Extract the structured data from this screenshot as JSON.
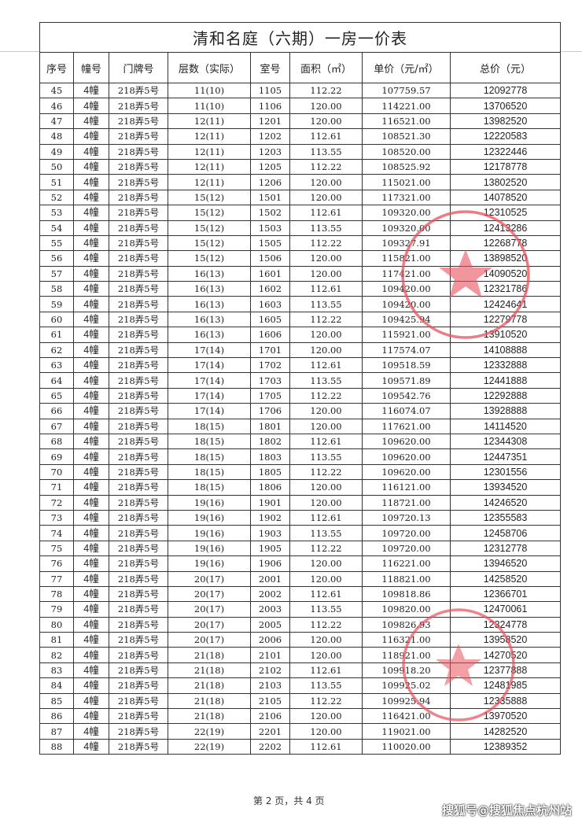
{
  "title": "清和名庭（六期）一房一价表",
  "headers": [
    "序号",
    "幢号",
    "门牌号",
    "层数（实际）",
    "室号",
    "面积（㎡）",
    "单价（元/㎡）",
    "总价（元）"
  ],
  "rows": [
    [
      "45",
      "4幢",
      "218弄5号",
      "11(10)",
      "1105",
      "112.22",
      "107759.57",
      "12092778"
    ],
    [
      "46",
      "4幢",
      "218弄5号",
      "11(10)",
      "1106",
      "120.00",
      "114221.00",
      "13706520"
    ],
    [
      "47",
      "4幢",
      "218弄5号",
      "12(11)",
      "1201",
      "120.00",
      "116521.00",
      "13982520"
    ],
    [
      "48",
      "4幢",
      "218弄5号",
      "12(11)",
      "1202",
      "112.61",
      "108521.30",
      "12220583"
    ],
    [
      "49",
      "4幢",
      "218弄5号",
      "12(11)",
      "1203",
      "113.55",
      "108520.00",
      "12322446"
    ],
    [
      "50",
      "4幢",
      "218弄5号",
      "12(11)",
      "1205",
      "112.22",
      "108525.92",
      "12178778"
    ],
    [
      "51",
      "4幢",
      "218弄5号",
      "12(11)",
      "1206",
      "120.00",
      "115021.00",
      "13802520"
    ],
    [
      "52",
      "4幢",
      "218弄5号",
      "15(12)",
      "1501",
      "120.00",
      "117321.00",
      "14078520"
    ],
    [
      "53",
      "4幢",
      "218弄5号",
      "15(12)",
      "1502",
      "112.61",
      "109320.00",
      "12310525"
    ],
    [
      "54",
      "4幢",
      "218弄5号",
      "15(12)",
      "1503",
      "113.55",
      "109320.00",
      "12413286"
    ],
    [
      "55",
      "4幢",
      "218弄5号",
      "15(12)",
      "1505",
      "112.22",
      "109327.91",
      "12268778"
    ],
    [
      "56",
      "4幢",
      "218弄5号",
      "15(12)",
      "1506",
      "120.00",
      "115821.00",
      "13898520"
    ],
    [
      "57",
      "4幢",
      "218弄5号",
      "16(13)",
      "1601",
      "120.00",
      "117421.00",
      "14090520"
    ],
    [
      "58",
      "4幢",
      "218弄5号",
      "16(13)",
      "1602",
      "112.61",
      "109420.00",
      "12321786"
    ],
    [
      "59",
      "4幢",
      "218弄5号",
      "16(13)",
      "1603",
      "113.55",
      "109420.00",
      "12424641"
    ],
    [
      "60",
      "4幢",
      "218弄5号",
      "16(13)",
      "1605",
      "112.22",
      "109425.94",
      "12279778"
    ],
    [
      "61",
      "4幢",
      "218弄5号",
      "16(13)",
      "1606",
      "120.00",
      "115921.00",
      "13910520"
    ],
    [
      "62",
      "4幢",
      "218弄5号",
      "17(14)",
      "1701",
      "120.00",
      "117574.07",
      "14108888"
    ],
    [
      "63",
      "4幢",
      "218弄5号",
      "17(14)",
      "1702",
      "112.61",
      "109518.59",
      "12332888"
    ],
    [
      "64",
      "4幢",
      "218弄5号",
      "17(14)",
      "1703",
      "113.55",
      "109571.89",
      "12441888"
    ],
    [
      "65",
      "4幢",
      "218弄5号",
      "17(14)",
      "1705",
      "112.22",
      "109542.76",
      "12292888"
    ],
    [
      "66",
      "4幢",
      "218弄5号",
      "17(14)",
      "1706",
      "120.00",
      "116074.07",
      "13928888"
    ],
    [
      "67",
      "4幢",
      "218弄5号",
      "18(15)",
      "1801",
      "120.00",
      "117621.00",
      "14114520"
    ],
    [
      "68",
      "4幢",
      "218弄5号",
      "18(15)",
      "1802",
      "112.61",
      "109620.00",
      "12344308"
    ],
    [
      "69",
      "4幢",
      "218弄5号",
      "18(15)",
      "1803",
      "113.55",
      "109620.00",
      "12447351"
    ],
    [
      "70",
      "4幢",
      "218弄5号",
      "18(15)",
      "1805",
      "112.22",
      "109620.00",
      "12301556"
    ],
    [
      "71",
      "4幢",
      "218弄5号",
      "18(15)",
      "1806",
      "120.00",
      "116121.00",
      "13934520"
    ],
    [
      "72",
      "4幢",
      "218弄5号",
      "19(16)",
      "1901",
      "120.00",
      "118721.00",
      "14246520"
    ],
    [
      "73",
      "4幢",
      "218弄5号",
      "19(16)",
      "1902",
      "112.61",
      "109720.13",
      "12355583"
    ],
    [
      "74",
      "4幢",
      "218弄5号",
      "19(16)",
      "1903",
      "113.55",
      "109720.00",
      "12458706"
    ],
    [
      "75",
      "4幢",
      "218弄5号",
      "19(16)",
      "1905",
      "112.22",
      "109720.00",
      "12312778"
    ],
    [
      "76",
      "4幢",
      "218弄5号",
      "19(16)",
      "1906",
      "120.00",
      "116221.00",
      "13946520"
    ],
    [
      "77",
      "4幢",
      "218弄5号",
      "20(17)",
      "2001",
      "120.00",
      "118821.00",
      "14258520"
    ],
    [
      "78",
      "4幢",
      "218弄5号",
      "20(17)",
      "2002",
      "112.61",
      "109818.86",
      "12366701"
    ],
    [
      "79",
      "4幢",
      "218弄5号",
      "20(17)",
      "2003",
      "113.55",
      "109820.00",
      "12470061"
    ],
    [
      "80",
      "4幢",
      "218弄5号",
      "20(17)",
      "2005",
      "112.22",
      "109826.93",
      "12324778"
    ],
    [
      "81",
      "4幢",
      "218弄5号",
      "20(17)",
      "2006",
      "120.00",
      "116321.00",
      "13958520"
    ],
    [
      "82",
      "4幢",
      "218弄5号",
      "21(18)",
      "2101",
      "120.00",
      "118921.00",
      "14270520"
    ],
    [
      "83",
      "4幢",
      "218弄5号",
      "21(18)",
      "2102",
      "112.61",
      "109918.20",
      "12377888"
    ],
    [
      "84",
      "4幢",
      "218弄5号",
      "21(18)",
      "2103",
      "113.55",
      "109925.02",
      "12481985"
    ],
    [
      "85",
      "4幢",
      "218弄5号",
      "21(18)",
      "2105",
      "112.22",
      "109925.94",
      "12335888"
    ],
    [
      "86",
      "4幢",
      "218弄5号",
      "21(18)",
      "2106",
      "120.00",
      "116421.00",
      "13970520"
    ],
    [
      "87",
      "4幢",
      "218弄5号",
      "22(19)",
      "2201",
      "120.00",
      "119021.00",
      "14282520"
    ],
    [
      "88",
      "4幢",
      "218弄5号",
      "22(19)",
      "2202",
      "112.61",
      "110020.00",
      "12389352"
    ]
  ],
  "footer": "第 2 页，共 4 页",
  "watermark": "搜狐号@搜狐焦点杭州站",
  "stamp_color": "#e8505b"
}
